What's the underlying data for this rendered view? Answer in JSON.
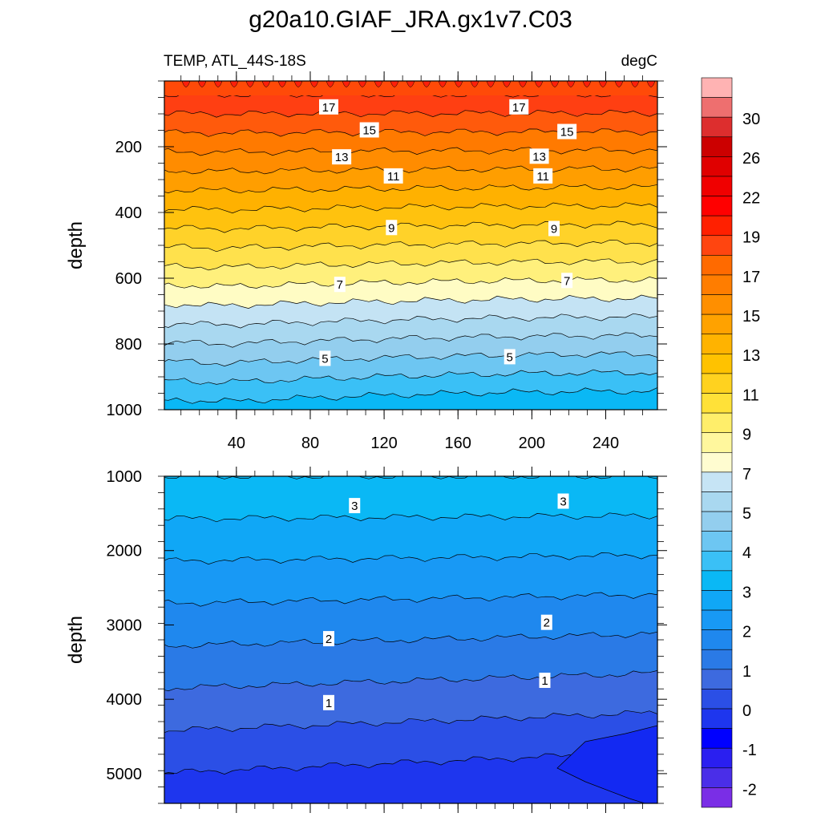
{
  "chart_data": {
    "type": "contour",
    "title": "g20a10.GIAF_JRA.gx1v7.C03",
    "variable_label": "TEMP, ATL_44S-18S",
    "units_label": "degC",
    "x_tick_labels": [
      "40",
      "80",
      "120",
      "160",
      "200",
      "240"
    ],
    "x_ticks": [
      40,
      80,
      120,
      160,
      200,
      240
    ],
    "xlim": [
      1,
      268
    ],
    "panels": [
      {
        "ylabel": "depth",
        "ylim": [
          0,
          1000
        ],
        "y_inverted": true,
        "y_ticks": [
          200,
          400,
          600,
          800,
          1000
        ],
        "y_tick_labels": [
          "200",
          "400",
          "600",
          "800",
          "1000"
        ],
        "fill_bands": [
          {
            "level": 19,
            "color": "#ff3f12"
          },
          {
            "level": 18,
            "color": "#ff5a0c"
          },
          {
            "level": 17,
            "color": "#ff7a00"
          },
          {
            "level": 16,
            "color": "#ff8c00"
          },
          {
            "level": 15,
            "color": "#ff9e00"
          },
          {
            "level": 14,
            "color": "#ffb100"
          },
          {
            "level": 13,
            "color": "#ffc20e"
          },
          {
            "level": 12,
            "color": "#ffd229"
          },
          {
            "level": 11,
            "color": "#ffe14c"
          },
          {
            "level": 10,
            "color": "#fff07c"
          },
          {
            "level": 9,
            "color": "#fffcc4"
          },
          {
            "level": 8,
            "color": "#c4e3f4"
          },
          {
            "level": 7,
            "color": "#a9d8f0"
          },
          {
            "level": 6,
            "color": "#93ceee"
          },
          {
            "level": 5,
            "color": "#6dc6f2"
          },
          {
            "level": 4,
            "color": "#3ac0f6"
          },
          {
            "level": 3,
            "color": "#0ab8f5"
          }
        ],
        "contour_labels": [
          {
            "text": "17",
            "x": 90,
            "depth": 80
          },
          {
            "text": "17",
            "x": 193,
            "depth": 80
          },
          {
            "text": "15",
            "x": 112,
            "depth": 150
          },
          {
            "text": "15",
            "x": 219,
            "depth": 155
          },
          {
            "text": "13",
            "x": 97,
            "depth": 232
          },
          {
            "text": "13",
            "x": 204,
            "depth": 230
          },
          {
            "text": "11",
            "x": 125,
            "depth": 290
          },
          {
            "text": "11",
            "x": 206,
            "depth": 290
          },
          {
            "text": "9",
            "x": 124,
            "depth": 447
          },
          {
            "text": "9",
            "x": 212,
            "depth": 450
          },
          {
            "text": "7",
            "x": 96,
            "depth": 620
          },
          {
            "text": "7",
            "x": 219,
            "depth": 608
          },
          {
            "text": "5",
            "x": 88,
            "depth": 845
          },
          {
            "text": "5",
            "x": 188,
            "depth": 840
          }
        ]
      },
      {
        "ylabel": "depth",
        "ylim": [
          1000,
          5400
        ],
        "y_inverted": true,
        "y_ticks": [
          1000,
          2000,
          3000,
          4000,
          5000
        ],
        "y_tick_labels": [
          "1000",
          "2000",
          "3000",
          "4000",
          "5000"
        ],
        "fill_bands": [
          {
            "level": 3.5,
            "color": "#0ab8f5"
          },
          {
            "level": 3,
            "color": "#10a7f6"
          },
          {
            "level": 2.5,
            "color": "#1899f5"
          },
          {
            "level": 2,
            "color": "#1f88ee"
          },
          {
            "level": 1.5,
            "color": "#2a7ae6"
          },
          {
            "level": 1,
            "color": "#3d6adf"
          },
          {
            "level": 0.5,
            "color": "#2b4fe6"
          },
          {
            "level": 0,
            "color": "#1e36ee"
          }
        ],
        "contour_labels": [
          {
            "text": "3",
            "x": 104,
            "depth": 1400
          },
          {
            "text": "3",
            "x": 217,
            "depth": 1340
          },
          {
            "text": "2",
            "x": 90,
            "depth": 3190
          },
          {
            "text": "2",
            "x": 208,
            "depth": 2970
          },
          {
            "text": "1",
            "x": 90,
            "depth": 4050
          },
          {
            "text": "1",
            "x": 207,
            "depth": 3750
          }
        ]
      }
    ],
    "colorbar": {
      "labels": [
        "30",
        "26",
        "22",
        "19",
        "17",
        "15",
        "13",
        "11",
        "9",
        "7",
        "5",
        "4",
        "3",
        "2",
        "1",
        "0",
        "-1",
        "-2"
      ],
      "colors": [
        "#ffb3b3",
        "#ee6f6f",
        "#dd2e2e",
        "#cc0000",
        "#e00000",
        "#f00000",
        "#ff0000",
        "#ff2000",
        "#ff4510",
        "#ff6a00",
        "#ff7d00",
        "#ff8f00",
        "#ffa200",
        "#ffb300",
        "#ffc200",
        "#ffd21f",
        "#ffe138",
        "#ffee6a",
        "#fff79d",
        "#fffcd0",
        "#c6e4f5",
        "#a9d8f0",
        "#93ceee",
        "#6dc6f2",
        "#3ac0f6",
        "#0ab8f5",
        "#10a7f6",
        "#1899f5",
        "#1f88ee",
        "#2a7ae6",
        "#3d6adf",
        "#2b4fe6",
        "#1e36ee",
        "#0000ff",
        "#2a1ff0",
        "#4a2ee8",
        "#7a2ee6"
      ]
    }
  }
}
